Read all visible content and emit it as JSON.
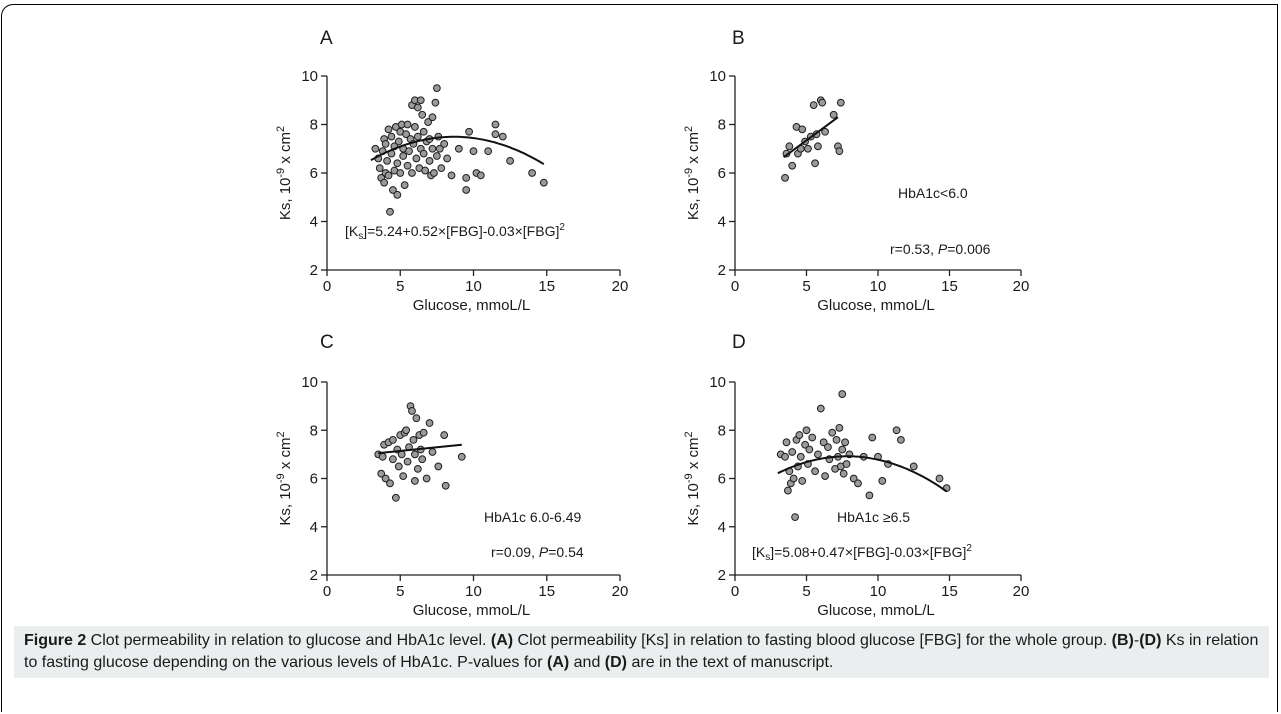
{
  "caption": {
    "figure_label": "Figure 2",
    "lead": " Clot permeability in relation to glucose and HbA1c level. ",
    "a_tag": "(A)",
    "a_text": " Clot permeability [Ks] in relation to fasting blood glucose [FBG] for the whole group. ",
    "b_tag": "(B)",
    "dash": "-",
    "d_tag": "(D)",
    "bd_text": " Ks in relation to fasting glucose depending on the various levels of HbA1c. P-values for ",
    "a_tag2": "(A)",
    "and_text": " and ",
    "d_tag2": "(D)",
    "tail": " are in the text of manuscript."
  },
  "chart_data": [
    {
      "panel": "A",
      "type": "scatter",
      "xlabel": "Glucose, mmoL/L",
      "ylabel": "Ks, 10-9 x cm2",
      "xlim": [
        0,
        20
      ],
      "ylim": [
        2,
        10
      ],
      "xticks": [
        "0",
        "5",
        "10",
        "15",
        "20"
      ],
      "yticks": [
        "2",
        "4",
        "6",
        "8",
        "10"
      ],
      "annotations": [
        "[Ks]=5.24+0.52×[FBG]-0.03×[FBG]2"
      ],
      "fit": {
        "kind": "quadratic",
        "coef": [
          5.24,
          0.52,
          -0.03
        ],
        "xrange": [
          3.0,
          14.8
        ]
      },
      "points": [
        [
          3.3,
          7.0
        ],
        [
          3.5,
          6.6
        ],
        [
          3.6,
          6.2
        ],
        [
          3.7,
          5.8
        ],
        [
          3.8,
          6.9
        ],
        [
          3.9,
          5.6
        ],
        [
          3.9,
          7.4
        ],
        [
          4.0,
          6.0
        ],
        [
          4.0,
          7.2
        ],
        [
          4.1,
          6.5
        ],
        [
          4.2,
          7.8
        ],
        [
          4.2,
          5.9
        ],
        [
          4.3,
          4.4
        ],
        [
          4.4,
          6.8
        ],
        [
          4.4,
          7.5
        ],
        [
          4.5,
          5.3
        ],
        [
          4.6,
          6.1
        ],
        [
          4.6,
          7.1
        ],
        [
          4.7,
          7.9
        ],
        [
          4.8,
          6.4
        ],
        [
          4.8,
          5.1
        ],
        [
          4.9,
          7.3
        ],
        [
          5.0,
          6.0
        ],
        [
          5.0,
          7.7
        ],
        [
          5.1,
          8.0
        ],
        [
          5.2,
          6.7
        ],
        [
          5.2,
          7.0
        ],
        [
          5.3,
          5.5
        ],
        [
          5.4,
          7.6
        ],
        [
          5.5,
          6.3
        ],
        [
          5.5,
          8.0
        ],
        [
          5.6,
          6.9
        ],
        [
          5.7,
          7.4
        ],
        [
          5.8,
          8.8
        ],
        [
          5.8,
          6.0
        ],
        [
          5.9,
          7.2
        ],
        [
          6.0,
          9.0
        ],
        [
          6.0,
          7.9
        ],
        [
          6.1,
          6.6
        ],
        [
          6.2,
          8.7
        ],
        [
          6.2,
          7.5
        ],
        [
          6.3,
          6.2
        ],
        [
          6.4,
          9.0
        ],
        [
          6.4,
          7.0
        ],
        [
          6.5,
          8.4
        ],
        [
          6.6,
          6.8
        ],
        [
          6.6,
          7.7
        ],
        [
          6.7,
          6.1
        ],
        [
          6.8,
          7.3
        ],
        [
          6.9,
          8.1
        ],
        [
          7.0,
          6.5
        ],
        [
          7.0,
          7.4
        ],
        [
          7.1,
          5.9
        ],
        [
          7.2,
          8.3
        ],
        [
          7.2,
          7.0
        ],
        [
          7.3,
          6.0
        ],
        [
          7.4,
          8.9
        ],
        [
          7.5,
          9.5
        ],
        [
          7.5,
          6.7
        ],
        [
          7.6,
          7.5
        ],
        [
          7.7,
          7.0
        ],
        [
          7.8,
          6.2
        ],
        [
          8.0,
          7.2
        ],
        [
          8.2,
          6.6
        ],
        [
          8.5,
          5.9
        ],
        [
          9.0,
          7.0
        ],
        [
          9.5,
          5.8
        ],
        [
          9.5,
          5.3
        ],
        [
          9.7,
          7.7
        ],
        [
          10.0,
          6.9
        ],
        [
          10.2,
          6.0
        ],
        [
          10.5,
          5.9
        ],
        [
          11.0,
          6.9
        ],
        [
          11.5,
          8.0
        ],
        [
          11.5,
          7.6
        ],
        [
          12.0,
          7.5
        ],
        [
          12.5,
          6.5
        ],
        [
          14.0,
          6.0
        ],
        [
          14.8,
          5.6
        ]
      ]
    },
    {
      "panel": "B",
      "type": "scatter",
      "xlabel": "Glucose, mmoL/L",
      "ylabel": "Ks, 10-9 x cm2",
      "xlim": [
        0,
        20
      ],
      "ylim": [
        2,
        10
      ],
      "xticks": [
        "0",
        "5",
        "10",
        "15",
        "20"
      ],
      "yticks": [
        "2",
        "4",
        "6",
        "8",
        "10"
      ],
      "annotations": [
        "HbA1c<6.0",
        "r=0.53, P=0.006"
      ],
      "fit": {
        "kind": "linear",
        "from": [
          3.4,
          6.65
        ],
        "to": [
          7.2,
          8.3
        ]
      },
      "points": [
        [
          3.5,
          5.8
        ],
        [
          3.6,
          6.8
        ],
        [
          3.8,
          7.1
        ],
        [
          4.0,
          6.3
        ],
        [
          4.3,
          7.9
        ],
        [
          4.4,
          6.8
        ],
        [
          4.6,
          7.0
        ],
        [
          4.7,
          7.8
        ],
        [
          4.9,
          7.3
        ],
        [
          5.1,
          7.0
        ],
        [
          5.3,
          7.5
        ],
        [
          5.5,
          8.8
        ],
        [
          5.6,
          6.4
        ],
        [
          5.7,
          7.6
        ],
        [
          5.8,
          7.1
        ],
        [
          6.0,
          9.0
        ],
        [
          6.1,
          8.9
        ],
        [
          6.3,
          7.7
        ],
        [
          6.9,
          8.4
        ],
        [
          7.2,
          7.1
        ],
        [
          7.3,
          6.9
        ],
        [
          7.4,
          8.9
        ]
      ]
    },
    {
      "panel": "C",
      "type": "scatter",
      "xlabel": "Glucose, mmoL/L",
      "ylabel": "Ks, 10-9 x cm2",
      "xlim": [
        0,
        20
      ],
      "ylim": [
        2,
        10
      ],
      "xticks": [
        "0",
        "5",
        "10",
        "15",
        "20"
      ],
      "yticks": [
        "2",
        "4",
        "6",
        "8",
        "10"
      ],
      "annotations": [
        "HbA1c 6.0-6.49",
        "r=0.09, P=0.54"
      ],
      "fit": {
        "kind": "linear",
        "from": [
          3.5,
          7.05
        ],
        "to": [
          9.2,
          7.4
        ]
      },
      "points": [
        [
          3.5,
          7.0
        ],
        [
          3.7,
          6.2
        ],
        [
          3.8,
          6.9
        ],
        [
          3.9,
          7.4
        ],
        [
          4.0,
          6.0
        ],
        [
          4.2,
          7.5
        ],
        [
          4.3,
          5.8
        ],
        [
          4.5,
          7.6
        ],
        [
          4.5,
          6.8
        ],
        [
          4.7,
          5.2
        ],
        [
          4.8,
          7.2
        ],
        [
          4.9,
          6.5
        ],
        [
          5.0,
          7.8
        ],
        [
          5.1,
          7.0
        ],
        [
          5.2,
          6.1
        ],
        [
          5.3,
          7.9
        ],
        [
          5.4,
          8.0
        ],
        [
          5.5,
          6.7
        ],
        [
          5.6,
          7.3
        ],
        [
          5.7,
          9.0
        ],
        [
          5.8,
          8.8
        ],
        [
          5.9,
          7.6
        ],
        [
          6.0,
          7.0
        ],
        [
          6.0,
          5.9
        ],
        [
          6.1,
          8.5
        ],
        [
          6.2,
          6.4
        ],
        [
          6.3,
          7.8
        ],
        [
          6.4,
          7.2
        ],
        [
          6.5,
          6.8
        ],
        [
          6.6,
          7.9
        ],
        [
          6.8,
          6.0
        ],
        [
          7.0,
          8.3
        ],
        [
          7.2,
          7.1
        ],
        [
          7.6,
          6.5
        ],
        [
          8.0,
          7.8
        ],
        [
          8.1,
          5.7
        ],
        [
          9.2,
          6.9
        ]
      ]
    },
    {
      "panel": "D",
      "type": "scatter",
      "xlabel": "Glucose, mmoL/L",
      "ylabel": "Ks, 10-9 x cm2",
      "xlim": [
        0,
        20
      ],
      "ylim": [
        2,
        10
      ],
      "xticks": [
        "0",
        "5",
        "10",
        "15",
        "20"
      ],
      "yticks": [
        "2",
        "4",
        "6",
        "8",
        "10"
      ],
      "annotations": [
        "HbA1c ≥6.5",
        "[Ks]=5.08+0.47×[FBG]-0.03×[FBG]2"
      ],
      "fit": {
        "kind": "quadratic",
        "coef": [
          5.08,
          0.47,
          -0.03
        ],
        "xrange": [
          3.0,
          14.8
        ]
      },
      "points": [
        [
          3.2,
          7.0
        ],
        [
          3.5,
          6.9
        ],
        [
          3.6,
          7.5
        ],
        [
          3.7,
          5.5
        ],
        [
          3.8,
          6.3
        ],
        [
          3.9,
          5.8
        ],
        [
          4.0,
          7.1
        ],
        [
          4.1,
          6.0
        ],
        [
          4.2,
          4.4
        ],
        [
          4.3,
          7.6
        ],
        [
          4.4,
          6.5
        ],
        [
          4.5,
          7.8
        ],
        [
          4.6,
          6.9
        ],
        [
          4.7,
          5.9
        ],
        [
          4.9,
          7.4
        ],
        [
          5.0,
          8.0
        ],
        [
          5.1,
          6.6
        ],
        [
          5.2,
          7.2
        ],
        [
          5.4,
          7.7
        ],
        [
          5.6,
          6.3
        ],
        [
          5.8,
          7.0
        ],
        [
          6.0,
          8.9
        ],
        [
          6.2,
          7.5
        ],
        [
          6.3,
          6.1
        ],
        [
          6.5,
          7.3
        ],
        [
          6.6,
          6.8
        ],
        [
          6.8,
          7.9
        ],
        [
          7.0,
          6.4
        ],
        [
          7.1,
          7.6
        ],
        [
          7.2,
          6.9
        ],
        [
          7.3,
          8.1
        ],
        [
          7.4,
          6.5
        ],
        [
          7.5,
          9.5
        ],
        [
          7.5,
          7.2
        ],
        [
          7.6,
          6.2
        ],
        [
          7.7,
          7.5
        ],
        [
          7.8,
          6.6
        ],
        [
          8.0,
          7.0
        ],
        [
          8.3,
          6.0
        ],
        [
          8.6,
          5.8
        ],
        [
          9.0,
          6.9
        ],
        [
          9.4,
          5.3
        ],
        [
          9.6,
          7.7
        ],
        [
          10.0,
          6.9
        ],
        [
          10.3,
          5.9
        ],
        [
          10.7,
          6.6
        ],
        [
          11.3,
          8.0
        ],
        [
          11.6,
          7.6
        ],
        [
          12.5,
          6.5
        ],
        [
          14.3,
          6.0
        ],
        [
          14.8,
          5.6
        ]
      ]
    }
  ]
}
